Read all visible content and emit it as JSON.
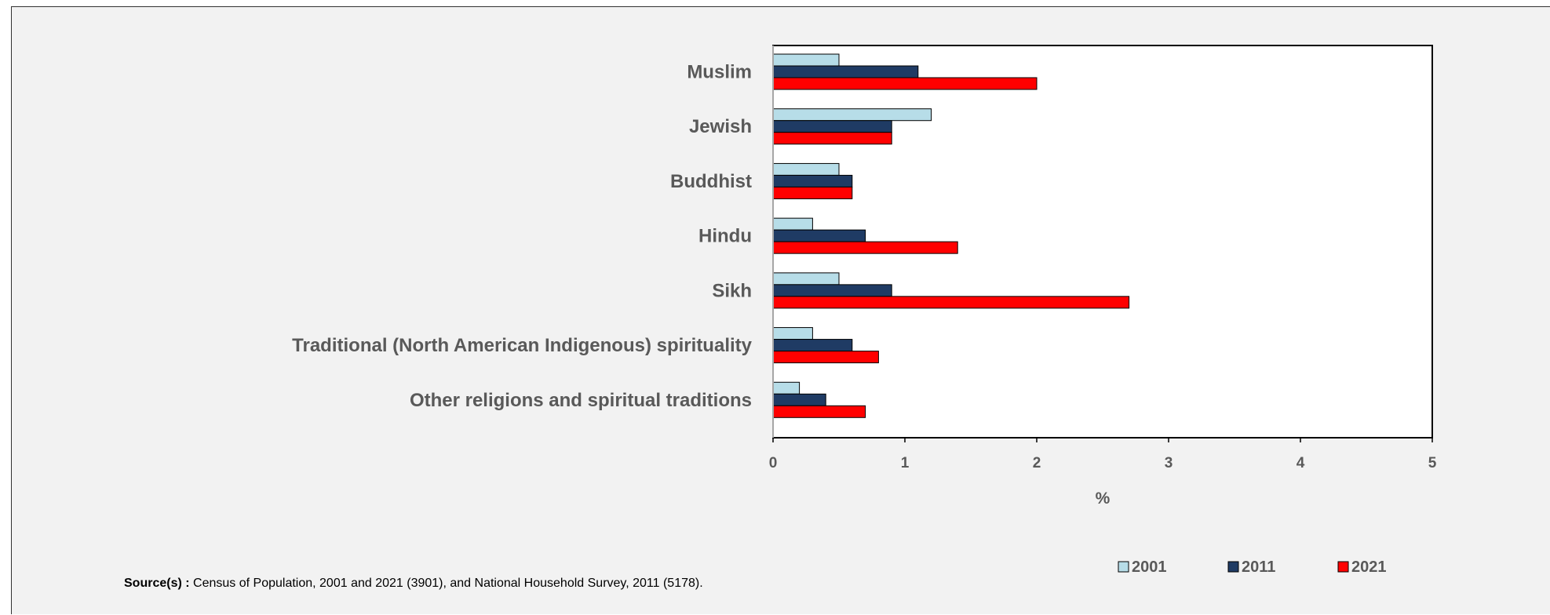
{
  "chart_data": {
    "type": "bar",
    "orientation": "horizontal",
    "categories": [
      "Muslim",
      "Jewish",
      "Buddhist",
      "Hindu",
      "Sikh",
      "Traditional (North American Indigenous) spirituality",
      "Other religions and spiritual traditions"
    ],
    "series": [
      {
        "name": "2001",
        "color": "#b7dde8",
        "values": [
          0.5,
          1.2,
          0.5,
          0.3,
          0.5,
          0.3,
          0.2
        ]
      },
      {
        "name": "2011",
        "color": "#1f3b64",
        "values": [
          1.1,
          0.9,
          0.6,
          0.7,
          0.9,
          0.6,
          0.4
        ]
      },
      {
        "name": "2021",
        "color": "#ff0000",
        "values": [
          2.0,
          0.9,
          0.6,
          1.4,
          2.7,
          0.8,
          0.7
        ]
      }
    ],
    "xlim": [
      0,
      5
    ],
    "xticks": [
      "0",
      "1",
      "2",
      "3",
      "4",
      "5"
    ],
    "xlabel": "%",
    "ylabel": "",
    "title": "",
    "grid": false,
    "legend_position": "bottom-right"
  },
  "source": {
    "label": "Source(s) :",
    "text": "Census of Population, 2001 and 2021 (3901), and National Household Survey, 2011 (5178)."
  }
}
